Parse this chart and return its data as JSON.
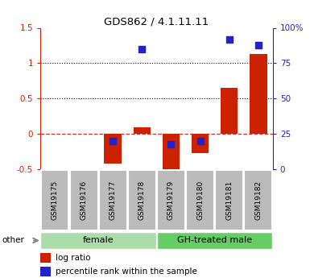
{
  "title": "GDS862 / 4.1.11.11",
  "samples": [
    "GSM19175",
    "GSM19176",
    "GSM19177",
    "GSM19178",
    "GSM19179",
    "GSM19180",
    "GSM19181",
    "GSM19182"
  ],
  "log_ratio": [
    0.0,
    0.0,
    -0.42,
    0.1,
    -0.52,
    -0.27,
    0.65,
    1.13
  ],
  "percentile_rank": [
    null,
    null,
    20,
    85,
    18,
    20,
    92,
    88
  ],
  "groups": [
    {
      "label": "female",
      "start": 0,
      "end": 4,
      "color": "#aaddaa"
    },
    {
      "label": "GH-treated male",
      "start": 4,
      "end": 8,
      "color": "#66cc66"
    }
  ],
  "ylim_left": [
    -0.5,
    1.5
  ],
  "ylim_right": [
    0,
    100
  ],
  "yticks_left": [
    -0.5,
    0.0,
    0.5,
    1.0,
    1.5
  ],
  "yticks_right": [
    0,
    25,
    50,
    75,
    100
  ],
  "ytick_labels_left": [
    "-0.5",
    "0",
    "0.5",
    "1",
    "1.5"
  ],
  "ytick_labels_right": [
    "0",
    "25",
    "50",
    "75",
    "100%"
  ],
  "hlines_dotted": [
    1.0,
    0.5
  ],
  "hline_dashed": 0.0,
  "bar_color": "#cc2200",
  "dot_color": "#2222cc",
  "bar_width": 0.6,
  "dot_size": 40,
  "left_label_color": "#cc2200",
  "right_label_color": "#2222cc",
  "tick_box_color": "#bbbbbb",
  "other_label": "other",
  "legend_items": [
    "log ratio",
    "percentile rank within the sample"
  ],
  "fig_width": 3.85,
  "fig_height": 3.45,
  "dpi": 100
}
